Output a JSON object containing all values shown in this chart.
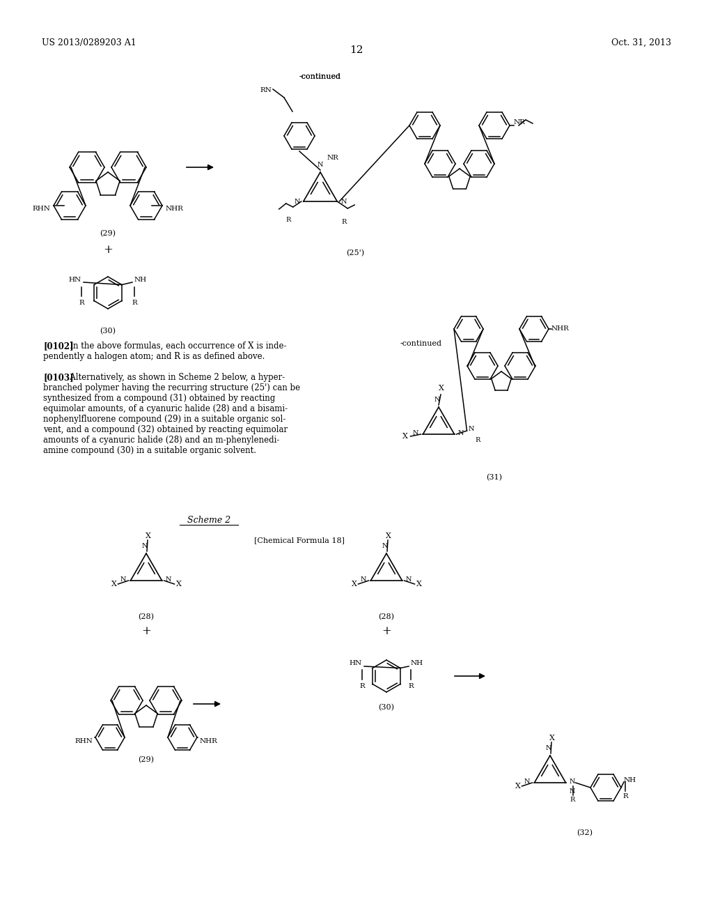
{
  "page_header_left": "US 2013/0289203 A1",
  "page_header_right": "Oct. 31, 2013",
  "page_number": "12",
  "background_color": "#ffffff",
  "text_color": "#000000",
  "gray_color": "#666666",
  "light_gray": "#999999"
}
